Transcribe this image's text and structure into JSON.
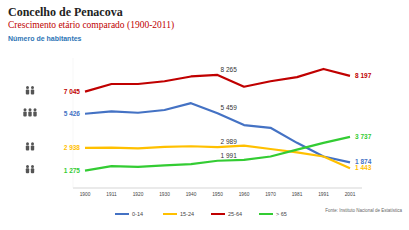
{
  "chart_data": {
    "type": "line",
    "title": "Concelho de Penacova",
    "subtitle": "Crescimento etário comparado (1900-2011)",
    "y_label": "Número de habitantes",
    "source": "Fonte: Instituto Nacional de Estatística",
    "categories": [
      "1900",
      "1911",
      "1920",
      "1930",
      "1940",
      "1950",
      "1960",
      "1970",
      "1981",
      "1991",
      "2001"
    ],
    "series": [
      {
        "name": "0-14",
        "color": "#4472c4",
        "values": [
          5426,
          5600,
          5500,
          5700,
          6200,
          5459,
          4600,
          4400,
          3300,
          2300,
          1874
        ],
        "value_labels": [
          "5 426",
          null,
          null,
          null,
          null,
          "5 459",
          null,
          null,
          null,
          null,
          "1 874"
        ]
      },
      {
        "name": "15-24",
        "color": "#ffc000",
        "values": [
          2938,
          2950,
          2900,
          3000,
          3050,
          2989,
          3100,
          2850,
          2600,
          2300,
          1443
        ],
        "value_labels": [
          "2 938",
          null,
          null,
          null,
          null,
          "2 989",
          null,
          null,
          null,
          null,
          "1 443"
        ]
      },
      {
        "name": "25-64",
        "color": "#c00000",
        "values": [
          7045,
          7600,
          7600,
          7800,
          8150,
          8265,
          7400,
          7800,
          8100,
          8700,
          8197
        ],
        "value_labels": [
          "7 045",
          null,
          null,
          null,
          null,
          "8 265",
          null,
          null,
          null,
          null,
          "8 197"
        ]
      },
      {
        "name": "> 65",
        "color": "#33cc33",
        "values": [
          1275,
          1600,
          1550,
          1650,
          1750,
          1991,
          2050,
          2300,
          2800,
          3300,
          3737
        ],
        "value_labels": [
          "1 275",
          null,
          null,
          null,
          null,
          "1 991",
          null,
          null,
          null,
          null,
          "3 737"
        ]
      }
    ],
    "ylim": [
      0,
      9500
    ],
    "tick_labels": "x",
    "grid": false,
    "legend": "bottom",
    "data_labels": true
  }
}
